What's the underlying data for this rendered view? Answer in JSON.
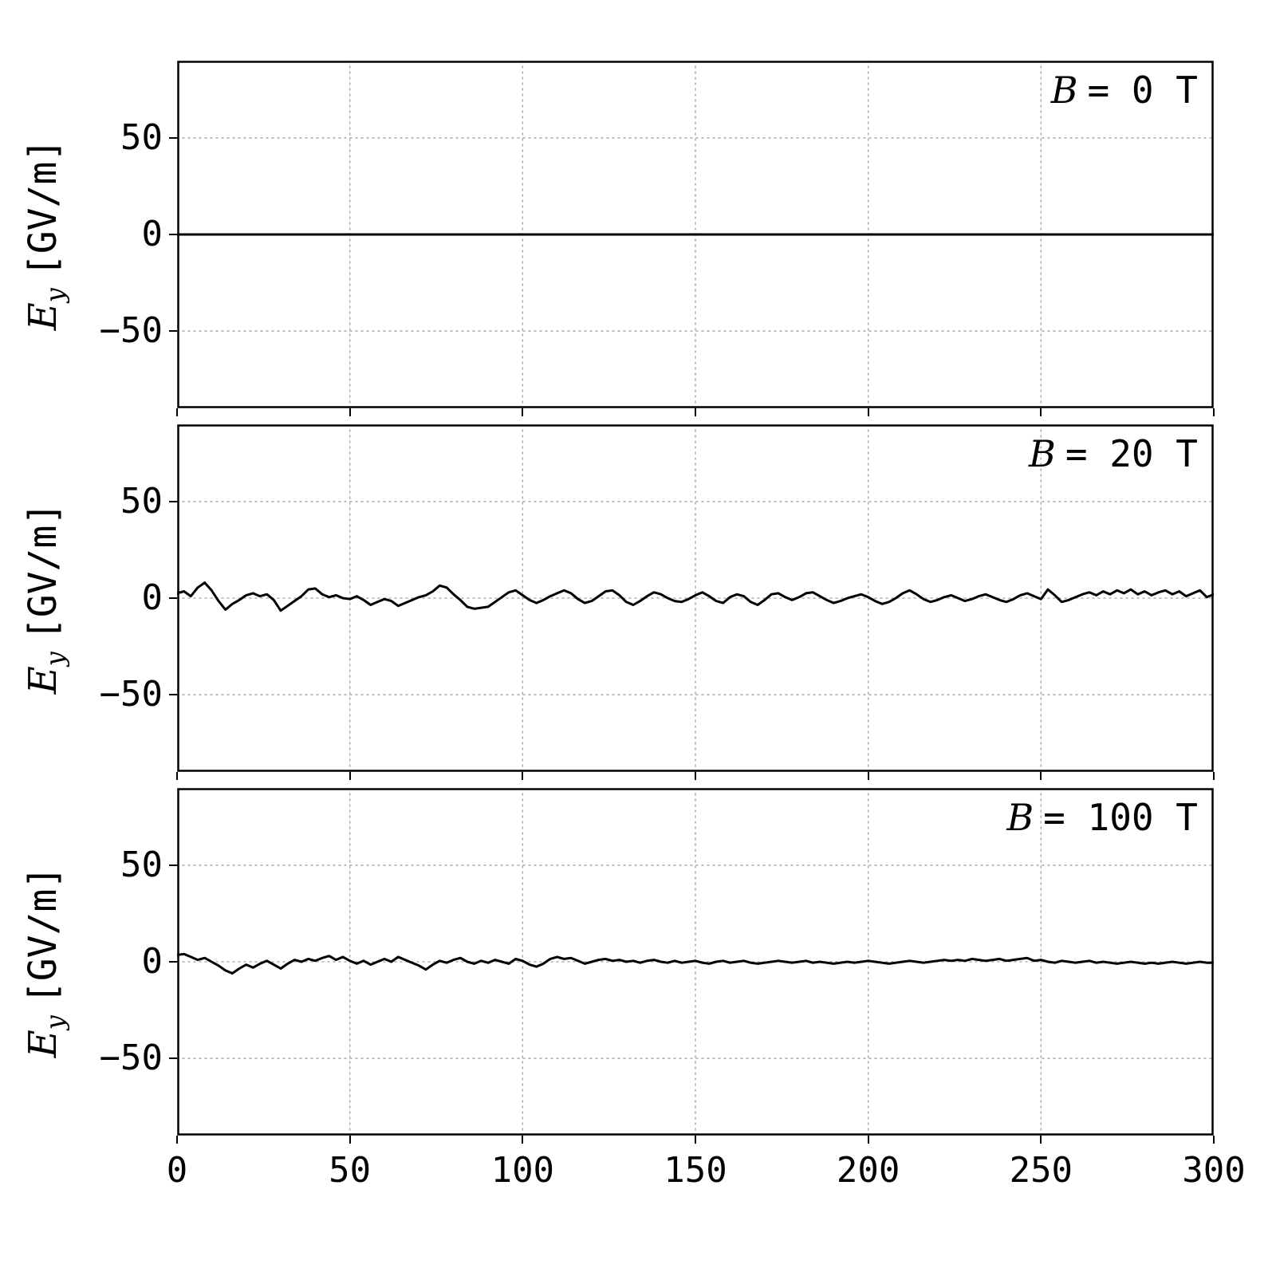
{
  "figure": {
    "background": "#ffffff"
  },
  "chart_data": {
    "type": "line",
    "title": "",
    "xlabel": "",
    "ylabel": "E_y [GV/m]",
    "ylabel_parts": {
      "var": "E",
      "sub": "y",
      "unit": "[GV/m]"
    },
    "xlim": [
      0,
      300
    ],
    "ylim": [
      -90,
      90
    ],
    "xticks": [
      0,
      50,
      100,
      150,
      200,
      250,
      300
    ],
    "xticklabels": [
      "0",
      "50",
      "100",
      "150",
      "200",
      "250",
      "300"
    ],
    "yticks": [
      50,
      0,
      -50
    ],
    "yticklabels": [
      "50",
      "0",
      "−50"
    ],
    "grid": true,
    "grid_style": "dotted",
    "legend": "none",
    "line_color": "#000000",
    "panels": [
      {
        "annotation": "B = 0 T",
        "annotation_var": "B",
        "annotation_rest": "= 0 T",
        "x_range": [
          0,
          300
        ],
        "values": [
          0,
          0
        ]
      },
      {
        "annotation": "B = 20 T",
        "annotation_var": "B",
        "annotation_rest": "= 20 T",
        "x_range": [
          0,
          300
        ],
        "values": [
          2.5,
          3.5,
          1,
          5.5,
          8,
          4,
          -1.5,
          -6,
          -3,
          -1,
          1.5,
          2.5,
          1,
          2,
          -1,
          -6.5,
          -4,
          -1.5,
          1,
          4.5,
          5,
          2,
          0.5,
          1.5,
          0,
          -0.5,
          1,
          -1,
          -3.5,
          -2,
          -0.5,
          -1.5,
          -4,
          -2.5,
          -1,
          0.5,
          1.5,
          3.5,
          6.5,
          5.5,
          2,
          -1,
          -4.5,
          -5.5,
          -5,
          -4.5,
          -2,
          0.5,
          3,
          4,
          1.5,
          -1,
          -2.5,
          -1,
          1,
          2.5,
          4,
          2.5,
          -0.5,
          -2.5,
          -1.5,
          1,
          3.5,
          4,
          1.5,
          -2,
          -3.5,
          -1.5,
          1,
          3,
          2,
          0,
          -1.5,
          -2,
          -0.5,
          1.5,
          3,
          1,
          -1.5,
          -2.5,
          0.5,
          2,
          1,
          -2,
          -3.5,
          -1,
          2,
          2.5,
          0.5,
          -1,
          0.5,
          2.5,
          3,
          1,
          -1,
          -2.5,
          -1.5,
          0,
          1,
          2,
          0.5,
          -1.5,
          -3,
          -2,
          0,
          2.5,
          4,
          2,
          -0.5,
          -2,
          -1,
          0.5,
          1.5,
          0,
          -1.5,
          -0.5,
          1,
          2,
          0.5,
          -1,
          -2,
          -0.5,
          1.5,
          2.5,
          1,
          -0.5,
          4.5,
          1.5,
          -2,
          -1,
          0.5,
          2,
          3,
          1.5,
          3.5,
          2,
          4,
          2.5,
          4.5,
          2,
          3.5,
          1.5,
          3,
          4,
          2,
          3.5,
          1,
          2.5,
          4,
          0.5,
          2
        ]
      },
      {
        "annotation": "B = 100 T",
        "annotation_var": "B",
        "annotation_rest": "= 100 T",
        "x_range": [
          0,
          300
        ],
        "values": [
          3.5,
          4,
          2.5,
          1,
          2,
          0,
          -2,
          -4.5,
          -6,
          -3.5,
          -1.5,
          -3,
          -1,
          0.5,
          -1.5,
          -3.5,
          -1,
          1,
          0,
          1.5,
          0.5,
          2,
          3,
          1,
          2.5,
          0.5,
          -1,
          0.5,
          -1.5,
          0,
          1.5,
          0,
          2.5,
          1,
          -0.5,
          -2,
          -4,
          -1.5,
          0.5,
          -0.5,
          1,
          2,
          0,
          -1,
          0.5,
          -0.5,
          1,
          0,
          -1,
          1.5,
          0.5,
          -1.5,
          -2.5,
          -1,
          1.5,
          2.5,
          1.5,
          2,
          0.5,
          -1,
          0,
          1,
          1.5,
          0.5,
          1,
          0,
          0.5,
          -0.5,
          0.5,
          1,
          0,
          -0.5,
          0.5,
          -0.5,
          0,
          0.5,
          -0.5,
          -1,
          0,
          0.5,
          -0.5,
          0,
          0.5,
          -0.5,
          -1,
          -0.5,
          0,
          0.5,
          0,
          -0.5,
          0,
          0.5,
          -0.5,
          0,
          -0.5,
          -1,
          -0.5,
          0,
          -0.5,
          0,
          0.5,
          0,
          -0.5,
          -1,
          -0.5,
          0,
          0.5,
          0,
          -0.5,
          0,
          0.5,
          1,
          0.5,
          1,
          0.5,
          1.5,
          1,
          0.5,
          1,
          1.5,
          0.5,
          1,
          1.5,
          2,
          0.5,
          1,
          0,
          -0.5,
          0.5,
          0,
          -0.5,
          0,
          0.5,
          -0.5,
          0,
          -0.5,
          -1,
          -0.5,
          0,
          -0.5,
          -1,
          -0.5,
          -1,
          -0.5,
          0,
          -0.5,
          -1,
          -0.5,
          0,
          -0.5,
          -0.5
        ]
      }
    ]
  }
}
